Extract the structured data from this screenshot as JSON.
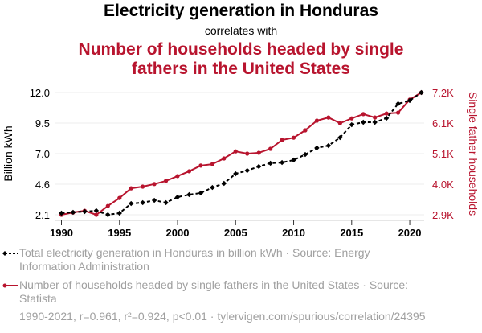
{
  "header": {
    "title": "Electricity generation in Honduras",
    "connector": "correlates with",
    "subtitle_line1": "Number of households headed by single",
    "subtitle_line2": "fathers in the United States"
  },
  "colors": {
    "series1": "#000000",
    "series2": "#b8142e",
    "grid": "#eeeeee",
    "legend_text": "#a0a0a0"
  },
  "legend": {
    "series1": "Total electricity generation in Honduras in billion kWh · Source: Energy Information Administration",
    "series1_line1": "Total electricity generation in Honduras in billion kWh · Source: Energy",
    "series1_line2": "Information Administration",
    "series2_line1": "Number of households headed by single fathers in the United States · Source:",
    "series2_line2": "Statista"
  },
  "footer": "1990-2021, r=0.961, r²=0.924, p<0.01 · tylervigen.com/spurious/correlation/24395",
  "chart_data": {
    "type": "line",
    "title": "Electricity generation in Honduras correlates with Number of households headed by single fathers in the United States",
    "x": [
      1990,
      1991,
      1992,
      1993,
      1994,
      1995,
      1996,
      1997,
      1998,
      1999,
      2000,
      2001,
      2002,
      2003,
      2004,
      2005,
      2006,
      2007,
      2008,
      2009,
      2010,
      2011,
      2012,
      2013,
      2014,
      2015,
      2016,
      2017,
      2018,
      2019,
      2020,
      2021
    ],
    "xlim": [
      1990,
      2021
    ],
    "xticks": [
      "1990",
      "1995",
      "2000",
      "2005",
      "2010",
      "2015",
      "2020"
    ],
    "xtick_values": [
      1990,
      1995,
      2000,
      2005,
      2010,
      2015,
      2020
    ],
    "ylabel_left": "Billion kWh",
    "ylabel_right": "Single father households",
    "ylim_left": [
      2.1,
      12.0
    ],
    "yticks_left": [
      "2.1",
      "4.6",
      "7.0",
      "9.5",
      "12.0"
    ],
    "ylim_right": [
      2.9,
      7.2
    ],
    "yticks_right": [
      "2.9K",
      "4.0K",
      "5.1K",
      "6.1K",
      "7.2K"
    ],
    "grid": true,
    "legend_position": "bottom",
    "series": [
      {
        "name": "Total electricity generation in Honduras in billion kWh",
        "axis": "left",
        "style": "dashed",
        "marker": "diamond",
        "values": [
          2.23,
          2.3,
          2.36,
          2.43,
          2.1,
          2.23,
          3.01,
          3.08,
          3.27,
          3.08,
          3.53,
          3.73,
          3.86,
          4.31,
          4.64,
          5.42,
          5.68,
          6.01,
          6.27,
          6.33,
          6.53,
          6.98,
          7.51,
          7.7,
          8.35,
          9.39,
          9.59,
          9.59,
          9.92,
          11.09,
          11.35,
          12.0
        ]
      },
      {
        "name": "Number of households headed by single fathers in the United States (thousands)",
        "axis": "right",
        "style": "solid",
        "marker": "circle",
        "values": [
          2.9,
          2.98,
          3.04,
          2.9,
          3.21,
          3.49,
          3.83,
          3.89,
          3.98,
          4.09,
          4.26,
          4.43,
          4.63,
          4.68,
          4.88,
          5.13,
          5.05,
          5.08,
          5.22,
          5.53,
          5.61,
          5.87,
          6.21,
          6.32,
          6.12,
          6.29,
          6.44,
          6.32,
          6.46,
          6.49,
          6.95,
          7.2
        ]
      }
    ]
  }
}
